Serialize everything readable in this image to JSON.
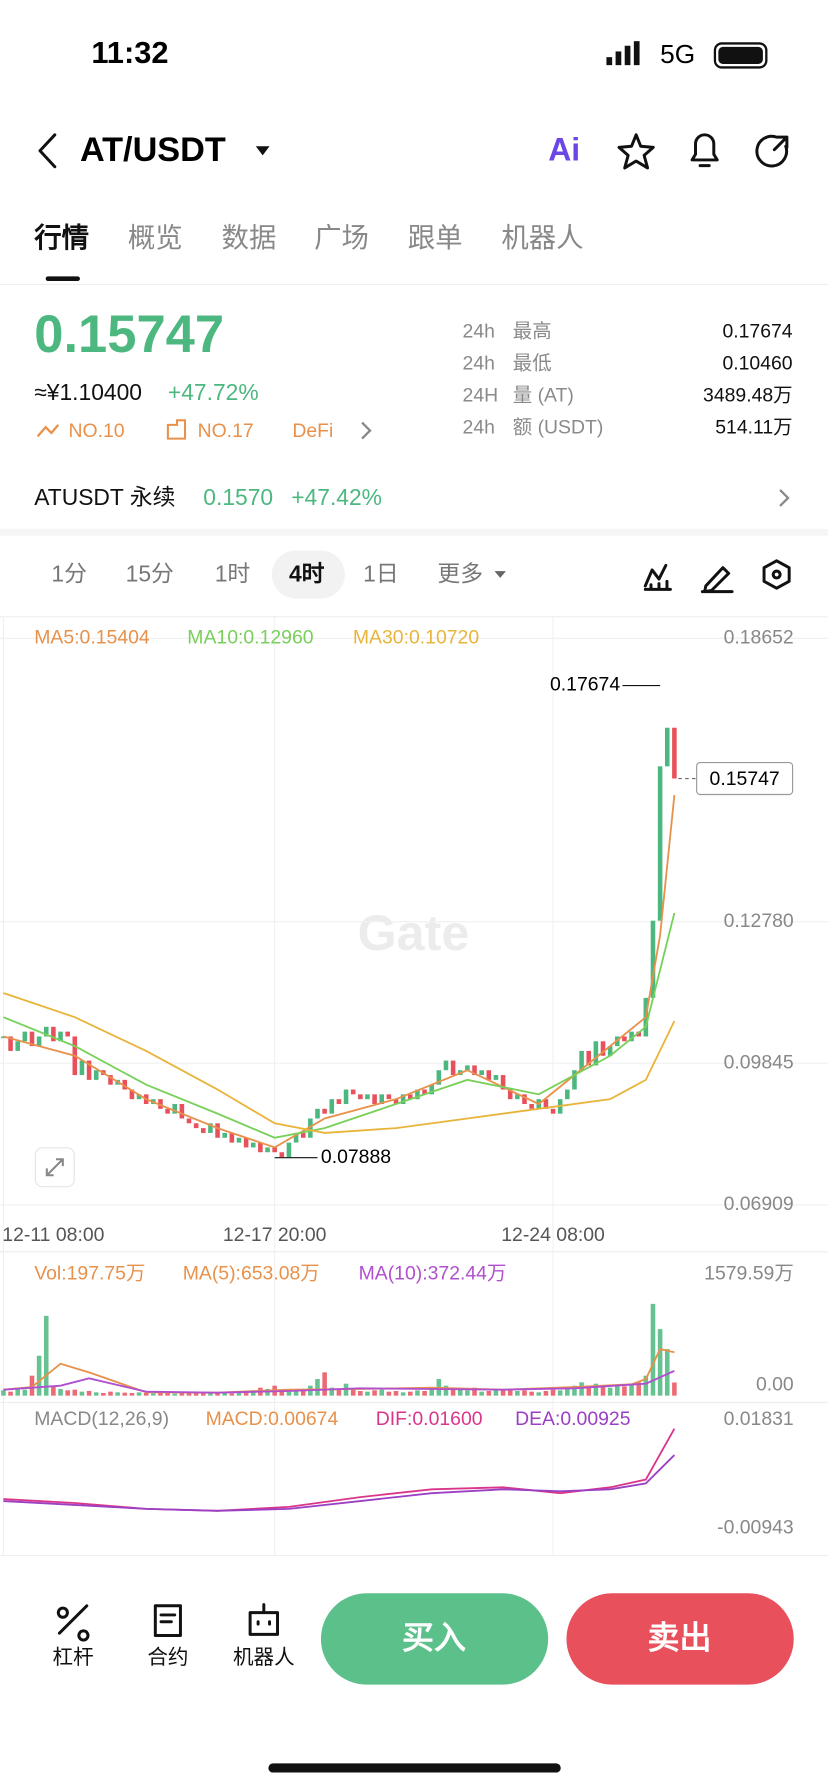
{
  "status": {
    "time": "11:32",
    "network": "5G"
  },
  "header": {
    "title": "AT/USDT",
    "ai_label": "Ai"
  },
  "tabs": [
    "行情",
    "概览",
    "数据",
    "广场",
    "跟单",
    "机器人"
  ],
  "ticker": {
    "price": "0.15747",
    "cny": "≈¥1.10400",
    "change": "+47.72%",
    "tags": [
      "NO.10",
      "NO.17",
      "DeFi"
    ],
    "stats": [
      {
        "period": "24h",
        "label": "最高",
        "value": "0.17674"
      },
      {
        "period": "24h",
        "label": "最低",
        "value": "0.10460"
      },
      {
        "period": "24H",
        "label": "量 (AT)",
        "value": "3489.48万"
      },
      {
        "period": "24h",
        "label": "额 (USDT)",
        "value": "514.11万"
      }
    ]
  },
  "perpetual": {
    "name": "ATUSDT 永续",
    "price": "0.1570",
    "change": "+47.42%"
  },
  "intervals": [
    "1分",
    "15分",
    "1时",
    "4时",
    "1日",
    "更多"
  ],
  "chart_data": {
    "type": "candlestick",
    "watermark": "Gate",
    "categories": [
      "12-11 08:00",
      null,
      null,
      null,
      null,
      null,
      null,
      null,
      null,
      null,
      null,
      null,
      null,
      null,
      null,
      null,
      null,
      null,
      null,
      null,
      null,
      null,
      null,
      null,
      null,
      null,
      null,
      null,
      null,
      null,
      null,
      null,
      null,
      null,
      null,
      null,
      null,
      null,
      "12-17 20:00",
      null,
      null,
      null,
      null,
      null,
      null,
      null,
      null,
      null,
      null,
      null,
      null,
      null,
      null,
      null,
      null,
      null,
      null,
      null,
      null,
      null,
      null,
      null,
      null,
      null,
      null,
      null,
      null,
      null,
      null,
      null,
      null,
      null,
      null,
      null,
      null,
      null,
      null,
      "12-24 08:00",
      null,
      null,
      null,
      null,
      null,
      null,
      null,
      null,
      null,
      null,
      null,
      null,
      null,
      null,
      null,
      null,
      null
    ],
    "values": [
      0.104,
      0.101,
      0.103,
      0.105,
      0.102,
      0.104,
      0.106,
      0.103,
      0.105,
      0.104,
      0.096,
      0.099,
      0.095,
      0.097,
      0.096,
      0.094,
      0.095,
      0.093,
      0.091,
      0.092,
      0.09,
      0.091,
      0.089,
      0.088,
      0.09,
      0.087,
      0.086,
      0.085,
      0.084,
      0.086,
      0.083,
      0.084,
      0.082,
      0.083,
      0.081,
      0.082,
      0.08,
      0.081,
      0.08,
      0.079,
      0.082,
      0.084,
      0.083,
      0.087,
      0.089,
      0.088,
      0.091,
      0.09,
      0.093,
      0.092,
      0.091,
      0.092,
      0.09,
      0.092,
      0.091,
      0.09,
      0.092,
      0.091,
      0.093,
      0.092,
      0.094,
      0.097,
      0.099,
      0.096,
      0.097,
      0.098,
      0.096,
      0.097,
      0.095,
      0.096,
      0.093,
      0.091,
      0.092,
      0.09,
      0.089,
      0.091,
      0.089,
      0.088,
      0.091,
      0.093,
      0.097,
      0.101,
      0.098,
      0.103,
      0.1,
      0.102,
      0.104,
      0.103,
      0.105,
      0.104,
      0.112,
      0.128,
      0.16,
      0.168,
      0.15747
    ],
    "up_color": "#4cb77f",
    "down_color": "#e8505b",
    "ylim": [
      0.066,
      0.191
    ],
    "yticks": [
      0.18652,
      {
        "value": 0.1278,
        "label": "0.12780"
      },
      0.09845,
      0.06909
    ],
    "grid": true,
    "ma_series": [
      {
        "name": "MA5:0.15404",
        "color": "#e8914b",
        "x": [
          0,
          10,
          20,
          30,
          38,
          45,
          55,
          65,
          75,
          85,
          90,
          92,
          94
        ],
        "values": [
          0.104,
          0.1,
          0.091,
          0.085,
          0.081,
          0.087,
          0.091,
          0.097,
          0.09,
          0.102,
          0.108,
          0.125,
          0.15404
        ]
      },
      {
        "name": "MA10:0.12960",
        "color": "#78d05a",
        "x": [
          0,
          10,
          20,
          30,
          38,
          45,
          55,
          65,
          75,
          85,
          90,
          94
        ],
        "values": [
          0.108,
          0.102,
          0.094,
          0.088,
          0.083,
          0.085,
          0.09,
          0.095,
          0.092,
          0.1,
          0.106,
          0.1296
        ]
      },
      {
        "name": "MA30:0.10720",
        "color": "#e8b43a",
        "x": [
          0,
          10,
          20,
          30,
          38,
          45,
          55,
          65,
          75,
          85,
          90,
          94
        ],
        "values": [
          0.113,
          0.108,
          0.101,
          0.093,
          0.086,
          0.084,
          0.085,
          0.087,
          0.089,
          0.091,
          0.095,
          0.1072
        ]
      }
    ],
    "high": {
      "x": 92,
      "value": 0.17674
    },
    "low": {
      "x": 38,
      "value": 0.07888
    },
    "last_price": 0.15747,
    "volume": {
      "label": "Vol:197.75万",
      "label_color": "#e8914b",
      "ylim": [
        0,
        1579.59
      ],
      "yticks": [
        {
          "value": 1579.59,
          "label": "1579.59万"
        },
        {
          "value": 0,
          "label": "0.00"
        }
      ],
      "values": [
        80,
        60,
        120,
        90,
        300,
        600,
        1200,
        150,
        100,
        80,
        90,
        60,
        70,
        50,
        40,
        60,
        50,
        45,
        40,
        50,
        40,
        35,
        50,
        40,
        30,
        60,
        45,
        40,
        35,
        50,
        40,
        50,
        35,
        60,
        45,
        80,
        120,
        100,
        150,
        90,
        60,
        80,
        70,
        150,
        250,
        350,
        120,
        100,
        180,
        90,
        70,
        60,
        80,
        90,
        60,
        70,
        50,
        60,
        80,
        70,
        100,
        250,
        150,
        120,
        90,
        80,
        120,
        60,
        70,
        80,
        90,
        100,
        70,
        80,
        60,
        50,
        70,
        90,
        80,
        100,
        150,
        200,
        120,
        180,
        150,
        120,
        160,
        140,
        180,
        200,
        300,
        1380,
        1000,
        700,
        197.75
      ],
      "ma_series": [
        {
          "name": "MA(5):653.08万",
          "color": "#e8914b",
          "x": [
            0,
            4,
            8,
            12,
            20,
            30,
            40,
            50,
            60,
            70,
            80,
            88,
            90,
            92,
            94
          ],
          "values": [
            90,
            130,
            480,
            350,
            50,
            45,
            90,
            100,
            120,
            90,
            130,
            170,
            250,
            700,
            653.08
          ]
        },
        {
          "name": "MA(10):372.44万",
          "color": "#b04fcf",
          "x": [
            0,
            8,
            12,
            20,
            30,
            40,
            50,
            60,
            70,
            80,
            90,
            94
          ],
          "values": [
            90,
            150,
            260,
            60,
            45,
            70,
            110,
            100,
            90,
            110,
            180,
            372.44
          ]
        }
      ]
    },
    "macd": {
      "label": "MACD(12,26,9)",
      "macd_label": "MACD:0.00674",
      "macd_color": "#e8914b",
      "ylim": [
        -0.00943,
        0.01831
      ],
      "yticks": [
        0.01831,
        -0.00943
      ],
      "series": [
        {
          "name": "DIF:0.01600",
          "color": "#d9368a",
          "x": [
            0,
            10,
            20,
            30,
            40,
            50,
            60,
            70,
            78,
            85,
            90,
            94
          ],
          "values": [
            -0.002,
            -0.003,
            -0.0045,
            -0.005,
            -0.004,
            -0.0015,
            0.0005,
            0.001,
            -0.0005,
            0.001,
            0.003,
            0.016
          ]
        },
        {
          "name": "DEA:0.00925",
          "color": "#9b3fc4",
          "x": [
            0,
            10,
            20,
            30,
            40,
            50,
            60,
            70,
            78,
            85,
            90,
            94
          ],
          "values": [
            -0.0025,
            -0.0035,
            -0.0045,
            -0.005,
            -0.0045,
            -0.0025,
            -0.0005,
            0.0005,
            0,
            0.0005,
            0.002,
            0.00925
          ]
        }
      ]
    }
  },
  "actions": [
    "杠杆",
    "合约",
    "机器人"
  ],
  "buy": "买入",
  "sell": "卖出"
}
